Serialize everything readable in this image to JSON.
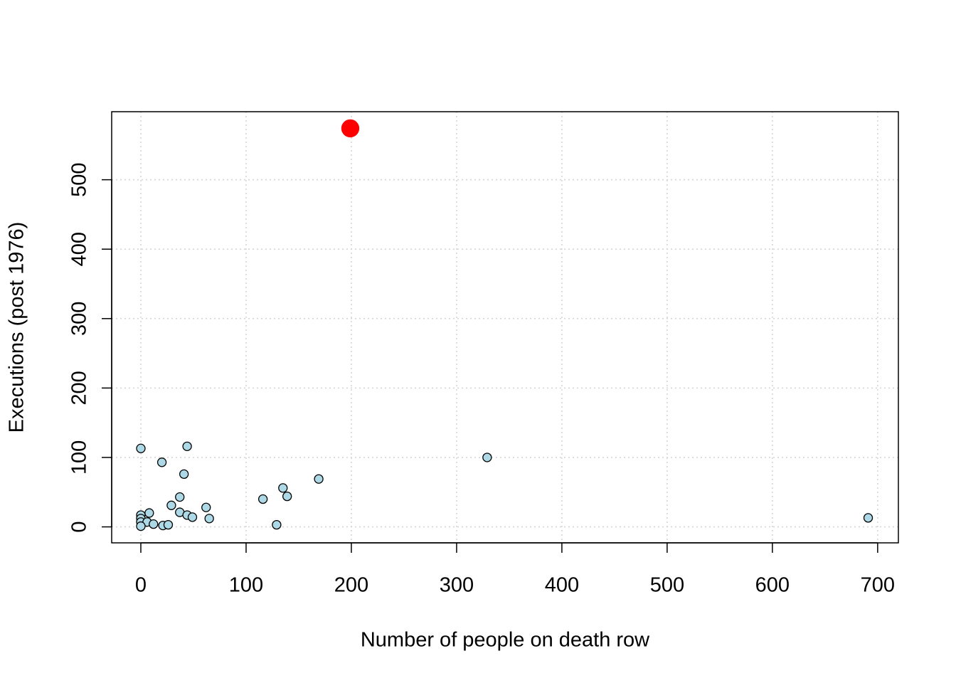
{
  "chart_data": {
    "type": "scatter",
    "xlabel": "Number of people on death row",
    "ylabel": "Executions (post 1976)",
    "xlim": [
      -27.7,
      719.7
    ],
    "ylim": [
      -23,
      598
    ],
    "xticks": [
      0,
      100,
      200,
      300,
      400,
      500,
      600,
      700
    ],
    "yticks": [
      0,
      100,
      200,
      300,
      400,
      500
    ],
    "grid": true,
    "series": [
      {
        "color": "lightblue",
        "marker_size": 1,
        "x": [
          0,
          44,
          20,
          41,
          329,
          169,
          135,
          139,
          116,
          37,
          29,
          62,
          37,
          8,
          44,
          49,
          65,
          0,
          0,
          0,
          6,
          12,
          21,
          26,
          129,
          0,
          691
        ],
        "values": [
          113,
          116,
          93,
          76,
          100,
          69,
          56,
          44,
          40,
          43,
          31,
          28,
          21,
          20,
          17,
          14,
          12,
          17,
          12,
          7,
          7,
          4,
          2,
          3,
          3,
          1,
          13
        ]
      },
      {
        "color": "red",
        "marker_size": 2,
        "x": [
          199
        ],
        "values": [
          574
        ]
      }
    ]
  }
}
